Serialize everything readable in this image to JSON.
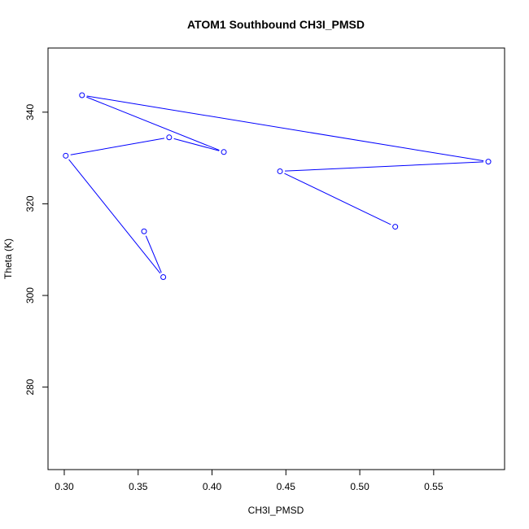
{
  "chart_data": {
    "type": "line",
    "title": "ATOM1 Southbound CH3I_PMSD",
    "xlabel": "CH3I_PMSD",
    "ylabel": "Theta (K)",
    "xlim": [
      0.289,
      0.598
    ],
    "ylim": [
      262,
      354
    ],
    "xticks": [
      0.3,
      0.35,
      0.4,
      0.45,
      0.5,
      0.55
    ],
    "xtick_labels": [
      "0.30",
      "0.35",
      "0.40",
      "0.45",
      "0.50",
      "0.55"
    ],
    "yticks": [
      280,
      300,
      320,
      340
    ],
    "ytick_labels": [
      "280",
      "300",
      "320",
      "340"
    ],
    "grid": false,
    "series": [
      {
        "color": "#0000ff",
        "marker": "open-circle",
        "points": [
          {
            "x": 0.354,
            "y": 314.0
          },
          {
            "x": 0.367,
            "y": 304.0
          },
          {
            "x": 0.301,
            "y": 330.5
          },
          {
            "x": 0.371,
            "y": 334.5
          },
          {
            "x": 0.408,
            "y": 331.3
          },
          {
            "x": 0.312,
            "y": 343.7
          },
          {
            "x": 0.587,
            "y": 329.2
          },
          {
            "x": 0.446,
            "y": 327.1
          },
          {
            "x": 0.524,
            "y": 315.0
          }
        ]
      }
    ]
  }
}
